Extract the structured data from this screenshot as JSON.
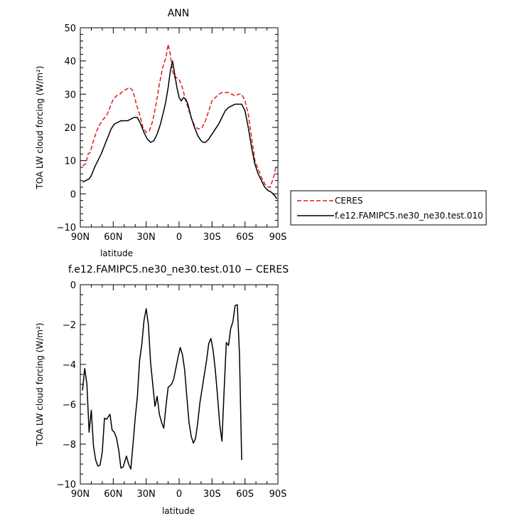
{
  "chart_data": [
    {
      "type": "line",
      "title": "ANN",
      "xlabel": "latitude",
      "ylabel": "TOA LW cloud forcing (W/m²)",
      "xlim": [
        -90,
        90
      ],
      "ylim": [
        -10,
        50
      ],
      "x_ticks": [
        {
          "value": -90,
          "label": "90N"
        },
        {
          "value": -60,
          "label": "60N"
        },
        {
          "value": -30,
          "label": "30N"
        },
        {
          "value": 0,
          "label": "0"
        },
        {
          "value": 30,
          "label": "30S"
        },
        {
          "value": 60,
          "label": "60S"
        },
        {
          "value": 90,
          "label": "90S"
        }
      ],
      "y_ticks": [
        {
          "value": -10,
          "label": "−10"
        },
        {
          "value": 0,
          "label": "0"
        },
        {
          "value": 10,
          "label": "10"
        },
        {
          "value": 20,
          "label": "20"
        },
        {
          "value": 30,
          "label": "30"
        },
        {
          "value": 40,
          "label": "40"
        },
        {
          "value": 50,
          "label": "50"
        }
      ],
      "legend": "outside-right",
      "series": [
        {
          "name": "CERES",
          "color": "#e41a1c",
          "dash": "dashed",
          "points": [
            [
              -88,
              8.5
            ],
            [
              -85,
              9
            ],
            [
              -83,
              12
            ],
            [
              -81,
              12.5
            ],
            [
              -78,
              16
            ],
            [
              -75,
              19
            ],
            [
              -72,
              21
            ],
            [
              -69,
              22.5
            ],
            [
              -66,
              23.5
            ],
            [
              -63,
              26
            ],
            [
              -60,
              28.5
            ],
            [
              -57,
              29.5
            ],
            [
              -54,
              30
            ],
            [
              -51,
              31
            ],
            [
              -48,
              31.5
            ],
            [
              -45,
              32
            ],
            [
              -42,
              31
            ],
            [
              -39,
              27
            ],
            [
              -36,
              24
            ],
            [
              -33,
              20
            ],
            [
              -30,
              18.5
            ],
            [
              -27,
              19
            ],
            [
              -24,
              22
            ],
            [
              -21,
              27
            ],
            [
              -18,
              33
            ],
            [
              -15,
              38
            ],
            [
              -12,
              41
            ],
            [
              -10,
              45
            ],
            [
              -8,
              42
            ],
            [
              -6,
              37
            ],
            [
              -4,
              35
            ],
            [
              -2,
              35
            ],
            [
              0,
              34.5
            ],
            [
              3,
              32
            ],
            [
              6,
              28
            ],
            [
              9,
              25
            ],
            [
              12,
              22
            ],
            [
              15,
              20
            ],
            [
              18,
              19.5
            ],
            [
              21,
              20
            ],
            [
              24,
              22
            ],
            [
              27,
              25
            ],
            [
              30,
              28
            ],
            [
              33,
              29
            ],
            [
              36,
              30
            ],
            [
              39,
              30.5
            ],
            [
              42,
              30.5
            ],
            [
              45,
              30.5
            ],
            [
              48,
              30
            ],
            [
              51,
              29.5
            ],
            [
              54,
              30
            ],
            [
              57,
              30
            ],
            [
              60,
              28
            ],
            [
              63,
              24
            ],
            [
              66,
              17
            ],
            [
              69,
              10
            ],
            [
              72,
              7.5
            ],
            [
              75,
              5
            ],
            [
              78,
              3
            ],
            [
              81,
              2
            ],
            [
              83,
              2
            ],
            [
              85,
              4
            ],
            [
              87,
              6
            ],
            [
              88,
              8
            ]
          ]
        },
        {
          "name": "f.e12.FAMIPC5.ne30_ne30.test.010",
          "color": "#000000",
          "dash": "solid",
          "points": [
            [
              -88,
              3.5
            ],
            [
              -85,
              4
            ],
            [
              -82,
              4.5
            ],
            [
              -80,
              5.5
            ],
            [
              -77,
              8
            ],
            [
              -74,
              10
            ],
            [
              -71,
              12
            ],
            [
              -68,
              14.5
            ],
            [
              -65,
              17
            ],
            [
              -62,
              19.5
            ],
            [
              -59,
              21
            ],
            [
              -56,
              21.5
            ],
            [
              -53,
              22
            ],
            [
              -50,
              22
            ],
            [
              -47,
              22
            ],
            [
              -44,
              22.5
            ],
            [
              -41,
              23
            ],
            [
              -38,
              23
            ],
            [
              -35,
              21
            ],
            [
              -32,
              18.5
            ],
            [
              -29,
              16.5
            ],
            [
              -26,
              15.5
            ],
            [
              -23,
              16
            ],
            [
              -20,
              18
            ],
            [
              -17,
              21
            ],
            [
              -14,
              25
            ],
            [
              -12,
              28
            ],
            [
              -10,
              32
            ],
            [
              -8,
              37
            ],
            [
              -6,
              40
            ],
            [
              -4,
              36
            ],
            [
              -2,
              32
            ],
            [
              0,
              29
            ],
            [
              2,
              28
            ],
            [
              4,
              29
            ],
            [
              6,
              28.5
            ],
            [
              8,
              27
            ],
            [
              11,
              23
            ],
            [
              14,
              20
            ],
            [
              17,
              17.5
            ],
            [
              20,
              16
            ],
            [
              22,
              15.5
            ],
            [
              24,
              15.5
            ],
            [
              27,
              16.5
            ],
            [
              30,
              18
            ],
            [
              33,
              19.5
            ],
            [
              36,
              21
            ],
            [
              39,
              23
            ],
            [
              42,
              25
            ],
            [
              45,
              26
            ],
            [
              48,
              26.5
            ],
            [
              51,
              27
            ],
            [
              54,
              27
            ],
            [
              57,
              27
            ],
            [
              60,
              25
            ],
            [
              63,
              20
            ],
            [
              66,
              14
            ],
            [
              69,
              9
            ],
            [
              72,
              6
            ],
            [
              75,
              4
            ],
            [
              78,
              2
            ],
            [
              81,
              1
            ],
            [
              84,
              0.5
            ],
            [
              87,
              -0.5
            ],
            [
              89,
              -1.5
            ]
          ]
        }
      ]
    },
    {
      "type": "line",
      "title": "f.e12.FAMIPC5.ne30_ne30.test.010 − CERES",
      "xlabel": "latitude",
      "ylabel": "TOA LW cloud forcing (W/m²)",
      "xlim": [
        -90,
        90
      ],
      "ylim": [
        -10,
        0
      ],
      "x_ticks": [
        {
          "value": -90,
          "label": "90N"
        },
        {
          "value": -60,
          "label": "60N"
        },
        {
          "value": -30,
          "label": "30N"
        },
        {
          "value": 0,
          "label": "0"
        },
        {
          "value": 30,
          "label": "30S"
        },
        {
          "value": 60,
          "label": "60S"
        },
        {
          "value": 90,
          "label": "90S"
        }
      ],
      "y_ticks": [
        {
          "value": -10,
          "label": "−10"
        },
        {
          "value": -8,
          "label": "−8"
        },
        {
          "value": -6,
          "label": "−6"
        },
        {
          "value": -4,
          "label": "−4"
        },
        {
          "value": -2,
          "label": "−2"
        },
        {
          "value": 0,
          "label": "0"
        }
      ],
      "series": [
        {
          "color": "#000000",
          "dash": "solid",
          "points": [
            [
              -88,
              -5.3
            ],
            [
              -86,
              -4.2
            ],
            [
              -84,
              -5
            ],
            [
              -82,
              -7.4
            ],
            [
              -80,
              -6.3
            ],
            [
              -78,
              -8.1
            ],
            [
              -76,
              -8.8
            ],
            [
              -74,
              -9.1
            ],
            [
              -72,
              -9.05
            ],
            [
              -70,
              -8.4
            ],
            [
              -68,
              -6.7
            ],
            [
              -66,
              -6.75
            ],
            [
              -63,
              -6.5
            ],
            [
              -61,
              -7.3
            ],
            [
              -59,
              -7.4
            ],
            [
              -57,
              -7.7
            ],
            [
              -55,
              -8.3
            ],
            [
              -53,
              -9.2
            ],
            [
              -51,
              -9.15
            ],
            [
              -48,
              -8.6
            ],
            [
              -46,
              -9.0
            ],
            [
              -44,
              -9.25
            ],
            [
              -42,
              -8.0
            ],
            [
              -40,
              -6.7
            ],
            [
              -38,
              -5.6
            ],
            [
              -36,
              -3.8
            ],
            [
              -34,
              -3.0
            ],
            [
              -32,
              -1.8
            ],
            [
              -30,
              -1.2
            ],
            [
              -28,
              -2.0
            ],
            [
              -26,
              -3.9
            ],
            [
              -24,
              -5.0
            ],
            [
              -22,
              -6.1
            ],
            [
              -20,
              -5.6
            ],
            [
              -18,
              -6.5
            ],
            [
              -16,
              -6.9
            ],
            [
              -14,
              -7.2
            ],
            [
              -12,
              -6.1
            ],
            [
              -10,
              -5.15
            ],
            [
              -7,
              -5.0
            ],
            [
              -5,
              -4.75
            ],
            [
              -3,
              -4.2
            ],
            [
              -1,
              -3.65
            ],
            [
              1,
              -3.15
            ],
            [
              3,
              -3.5
            ],
            [
              5,
              -4.25
            ],
            [
              7,
              -5.6
            ],
            [
              9,
              -6.9
            ],
            [
              11,
              -7.6
            ],
            [
              13,
              -7.95
            ],
            [
              15,
              -7.7
            ],
            [
              17,
              -6.9
            ],
            [
              19,
              -5.9
            ],
            [
              21,
              -5.2
            ],
            [
              23,
              -4.5
            ],
            [
              25,
              -3.8
            ],
            [
              27,
              -2.95
            ],
            [
              29,
              -2.7
            ],
            [
              31,
              -3.3
            ],
            [
              33,
              -4.3
            ],
            [
              35,
              -5.6
            ],
            [
              37,
              -7.0
            ],
            [
              39,
              -7.85
            ],
            [
              41,
              -5.3
            ],
            [
              43,
              -2.9
            ],
            [
              45,
              -3.05
            ],
            [
              47,
              -2.2
            ],
            [
              49,
              -1.85
            ],
            [
              51,
              -1.05
            ],
            [
              53,
              -1.0
            ],
            [
              55,
              -3.5
            ],
            [
              57,
              -8.8
            ]
          ]
        }
      ]
    }
  ]
}
